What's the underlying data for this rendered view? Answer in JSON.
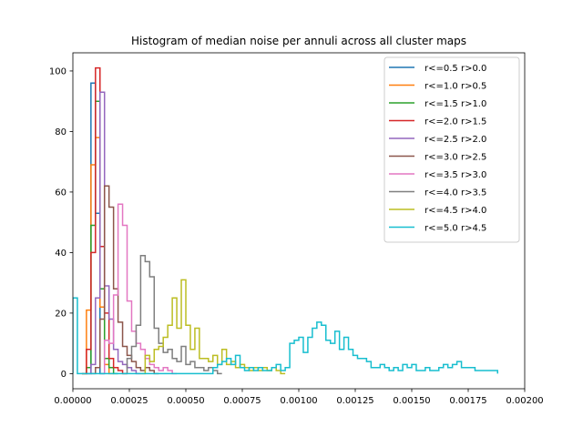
{
  "chart_data": {
    "type": "histogram",
    "title": "Histogram of median noise per annuli across all cluster maps",
    "xlabel": "",
    "ylabel": "",
    "xlim": [
      0,
      0.002
    ],
    "ylim": [
      -5,
      106
    ],
    "xticks": [
      0,
      0.00025,
      0.0005,
      0.00075,
      0.001,
      0.00125,
      0.0015,
      0.00175,
      0.002
    ],
    "xtick_labels": [
      "0.00000",
      "0.00025",
      "0.00050",
      "0.00075",
      "0.00100",
      "0.00125",
      "0.00150",
      "0.00175",
      "0.00200"
    ],
    "yticks": [
      0,
      20,
      40,
      60,
      80,
      100
    ],
    "ytick_labels": [
      "0",
      "20",
      "40",
      "60",
      "80",
      "100"
    ],
    "legend_position": "upper right",
    "grid": false,
    "bin_width": 2e-05,
    "series": [
      {
        "name": "r<=0.5  r>0.0",
        "color": "#1f77b4",
        "x0": 6e-05,
        "counts": [
          0,
          96,
          53,
          0
        ]
      },
      {
        "name": "r<=1.0  r>0.5",
        "color": "#ff7f0e",
        "x0": 4e-05,
        "counts": [
          0,
          21,
          69,
          78,
          22,
          3,
          0
        ]
      },
      {
        "name": "r<=1.5  r>1.0",
        "color": "#2ca02c",
        "x0": 4e-05,
        "counts": [
          0,
          2,
          49,
          90,
          28,
          5,
          2,
          0
        ]
      },
      {
        "name": "r<=2.0  r>1.5",
        "color": "#d62728",
        "x0": 4e-05,
        "counts": [
          0,
          8,
          40,
          101,
          42,
          20,
          5,
          2,
          1,
          0
        ]
      },
      {
        "name": "r<=2.5  r>2.0",
        "color": "#9467bd",
        "x0": 6e-05,
        "counts": [
          0,
          3,
          25,
          93,
          29,
          18,
          8,
          4,
          3,
          2,
          1,
          0
        ]
      },
      {
        "name": "r<=3.0  r>2.5",
        "color": "#8c564b",
        "x0": 8e-05,
        "counts": [
          0,
          2,
          18,
          62,
          55,
          28,
          17,
          9,
          6,
          4,
          2,
          1,
          2,
          1,
          0
        ]
      },
      {
        "name": "r<=3.5  r>3.0",
        "color": "#e377c2",
        "x0": 0.00012,
        "counts": [
          0,
          11,
          10,
          26,
          56,
          49,
          24,
          14,
          10,
          8,
          5,
          3,
          2,
          1,
          2,
          1,
          0
        ]
      },
      {
        "name": "r<=4.0  r>3.5",
        "color": "#7f7f7f",
        "x0": 0.00022,
        "counts": [
          0,
          5,
          9,
          16,
          39,
          37,
          32,
          15,
          10,
          7,
          8,
          5,
          4,
          9,
          3,
          4,
          2,
          2,
          1,
          2,
          1,
          0
        ]
      },
      {
        "name": "r<=4.5  r>4.0",
        "color": "#bcbd22",
        "x0": 0.0003,
        "counts": [
          0,
          6,
          4,
          8,
          9,
          12,
          16,
          25,
          15,
          31,
          16,
          8,
          15,
          5,
          5,
          4,
          6,
          3,
          8,
          3,
          4,
          2,
          3,
          2,
          1,
          2,
          1,
          2,
          1,
          2,
          1,
          0
        ]
      },
      {
        "name": "r<=5.0  r>4.5",
        "color": "#17becf",
        "x0": 0.0,
        "counts": [
          25,
          0,
          0,
          0,
          0,
          0,
          0,
          0,
          0,
          0,
          0,
          0,
          0,
          0,
          0,
          0,
          0,
          0,
          0,
          0,
          0,
          0,
          0,
          0,
          0,
          0,
          0,
          0,
          0,
          0,
          0,
          2,
          3,
          4,
          5,
          3,
          6,
          2,
          1,
          2,
          1,
          2,
          1,
          1,
          2,
          3,
          1,
          2,
          10,
          11,
          12,
          7,
          12,
          15,
          17,
          16,
          11,
          10,
          14,
          8,
          12,
          8,
          6,
          5,
          5,
          4,
          2,
          2,
          3,
          2,
          1,
          2,
          1,
          3,
          2,
          3,
          1,
          1,
          2,
          1,
          1,
          2,
          3,
          2,
          3,
          4,
          2,
          2,
          2,
          1,
          1,
          1,
          1,
          1
        ]
      }
    ]
  }
}
